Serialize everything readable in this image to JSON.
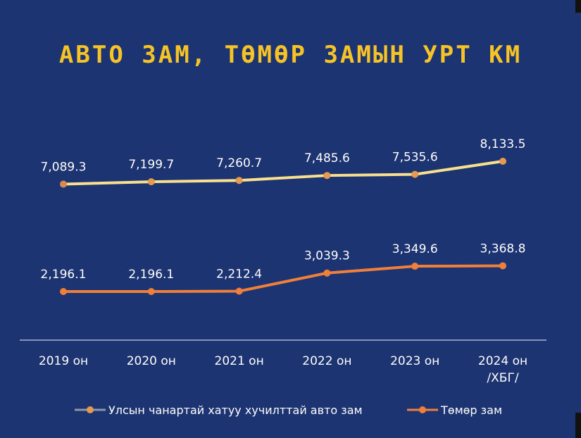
{
  "chart_data": {
    "type": "line",
    "title": "АВТО ЗАМ, ТӨМӨР ЗАМЫН УРТ КМ",
    "categories": [
      "2019 он",
      "2020 он",
      "2021 он",
      "2022 он",
      "2023 он",
      "2024 он\n/ХБГ/"
    ],
    "series": [
      {
        "name": "Улсын чанартай хатуу хучилттай авто зам",
        "color": "#f9e08e",
        "values": [
          7089.3,
          7199.7,
          7260.7,
          7485.6,
          7535.6,
          8133.5
        ],
        "labels": [
          "7,089.3",
          "7,199.7",
          "7,260.7",
          "7,485.6",
          "7,535.6",
          "8,133.5"
        ]
      },
      {
        "name": "Төмөр зам",
        "color": "#f07f3a",
        "values": [
          2196.1,
          2196.1,
          2212.4,
          3039.3,
          3349.6,
          3368.8
        ],
        "labels": [
          "2,196.1",
          "2,196.1",
          "2,212.4",
          "3,039.3",
          "3,349.6",
          "3,368.8"
        ]
      }
    ],
    "legend_position": "bottom",
    "grid": false,
    "ylim": [
      -1000,
      10000
    ]
  }
}
